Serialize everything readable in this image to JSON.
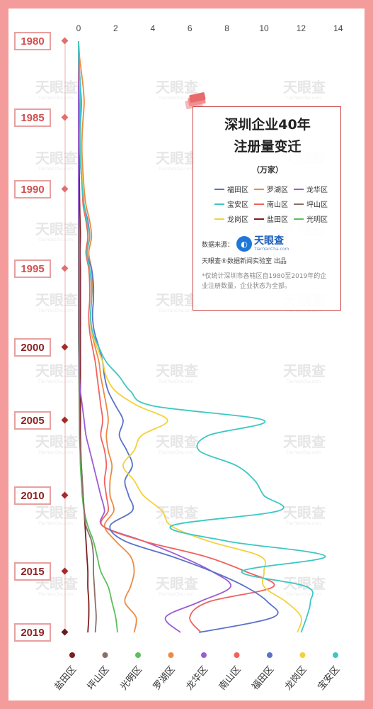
{
  "chart_data": {
    "type": "line",
    "title": "深圳企业40年注册量变迁",
    "subtitle": "（万家）",
    "orientation": "vertical-time",
    "x_axis": {
      "ticks": [
        0,
        2,
        4,
        6,
        8,
        10,
        12,
        14
      ],
      "range": [
        0,
        14.5
      ]
    },
    "year_labels": [
      "1980",
      "1985",
      "1990",
      "1995",
      "2000",
      "2005",
      "2010",
      "2015",
      "2019"
    ],
    "years": [
      1980,
      1981,
      1982,
      1983,
      1984,
      1985,
      1986,
      1987,
      1988,
      1989,
      1990,
      1991,
      1992,
      1993,
      1994,
      1995,
      1996,
      1997,
      1998,
      1999,
      2000,
      2001,
      2002,
      2003,
      2004,
      2005,
      2006,
      2007,
      2008,
      2009,
      2010,
      2011,
      2012,
      2013,
      2014,
      2015,
      2016,
      2017,
      2018,
      2019
    ],
    "series": [
      {
        "name": "福田区",
        "color": "#5b72c9",
        "values": [
          0.0,
          0.02,
          0.05,
          0.1,
          0.15,
          0.12,
          0.1,
          0.08,
          0.1,
          0.15,
          0.25,
          0.3,
          0.5,
          0.6,
          0.45,
          0.7,
          0.8,
          0.8,
          0.75,
          0.85,
          1.1,
          1.3,
          1.4,
          1.6,
          2.0,
          2.4,
          2.2,
          2.6,
          2.9,
          2.5,
          2.7,
          2.9,
          1.7,
          2.5,
          5.0,
          7.2,
          9.0,
          10.2,
          10.5,
          6.5
        ]
      },
      {
        "name": "罗湖区",
        "color": "#ed8a42",
        "values": [
          0.0,
          0.05,
          0.15,
          0.25,
          0.3,
          0.25,
          0.2,
          0.18,
          0.2,
          0.25,
          0.3,
          0.4,
          0.6,
          0.7,
          0.55,
          0.7,
          0.75,
          0.7,
          0.65,
          0.7,
          0.9,
          1.1,
          1.2,
          1.35,
          1.5,
          1.6,
          1.5,
          1.6,
          1.8,
          1.7,
          1.7,
          1.9,
          1.4,
          2.0,
          2.8,
          3.0,
          2.8,
          2.5,
          3.1,
          3.0
        ]
      },
      {
        "name": "龙华区",
        "color": "#9b5cd6",
        "values": [
          0.0,
          0.0,
          0.0,
          0.0,
          0.0,
          0.0,
          0.0,
          0.0,
          0.0,
          0.0,
          0.0,
          0.0,
          0.02,
          0.05,
          0.05,
          0.05,
          0.05,
          0.05,
          0.05,
          0.05,
          0.05,
          0.05,
          0.05,
          0.1,
          0.2,
          0.3,
          0.4,
          0.6,
          0.8,
          1.0,
          1.2,
          1.4,
          1.3,
          3.5,
          5.5,
          7.2,
          8.2,
          6.5,
          4.7,
          5.5
        ]
      },
      {
        "name": "宝安区",
        "color": "#3cc7c4",
        "values": [
          0.0,
          0.01,
          0.05,
          0.1,
          0.12,
          0.1,
          0.08,
          0.08,
          0.1,
          0.15,
          0.2,
          0.3,
          0.45,
          0.6,
          0.45,
          0.6,
          0.7,
          0.7,
          0.65,
          0.75,
          1.1,
          1.5,
          2.2,
          2.8,
          4.0,
          10.0,
          7.0,
          6.5,
          8.5,
          9.5,
          10.0,
          10.8,
          5.0,
          8.0,
          13.3,
          8.8,
          12.3,
          12.5,
          12.3,
          12.0
        ]
      },
      {
        "name": "南山区",
        "color": "#f0625e",
        "values": [
          0.0,
          0.01,
          0.03,
          0.06,
          0.08,
          0.08,
          0.08,
          0.08,
          0.1,
          0.15,
          0.2,
          0.25,
          0.4,
          0.5,
          0.4,
          0.55,
          0.6,
          0.6,
          0.55,
          0.6,
          0.75,
          0.9,
          1.0,
          1.1,
          1.2,
          1.3,
          1.2,
          1.4,
          1.5,
          1.4,
          1.5,
          1.6,
          1.3,
          3.5,
          6.8,
          9.0,
          10.5,
          7.0,
          6.0,
          6.6
        ]
      },
      {
        "name": "坪山区",
        "color": "#8c6e68",
        "values": [
          0.0,
          0.0,
          0.0,
          0.0,
          0.0,
          0.0,
          0.0,
          0.0,
          0.0,
          0.0,
          0.0,
          0.0,
          0.0,
          0.0,
          0.0,
          0.0,
          0.0,
          0.0,
          0.0,
          0.0,
          0.02,
          0.02,
          0.03,
          0.04,
          0.05,
          0.05,
          0.06,
          0.1,
          0.15,
          0.2,
          0.25,
          0.3,
          0.4,
          0.7,
          0.8,
          0.8,
          0.85,
          0.9,
          0.95,
          0.9
        ]
      },
      {
        "name": "龙岗区",
        "color": "#f2d23c",
        "values": [
          0.0,
          0.01,
          0.04,
          0.08,
          0.1,
          0.1,
          0.1,
          0.1,
          0.12,
          0.18,
          0.25,
          0.3,
          0.45,
          0.6,
          0.45,
          0.6,
          0.7,
          0.7,
          0.65,
          0.7,
          1.0,
          1.3,
          1.5,
          2.0,
          3.2,
          4.8,
          3.4,
          3.0,
          2.4,
          3.0,
          3.5,
          4.5,
          5.0,
          7.0,
          9.8,
          10.0,
          10.0,
          11.2,
          12.0,
          11.8
        ]
      },
      {
        "name": "盐田区",
        "color": "#7b1f1f",
        "values": [
          0.0,
          0.0,
          0.0,
          0.01,
          0.02,
          0.02,
          0.02,
          0.02,
          0.03,
          0.04,
          0.05,
          0.06,
          0.08,
          0.1,
          0.08,
          0.1,
          0.1,
          0.1,
          0.1,
          0.1,
          0.1,
          0.1,
          0.1,
          0.1,
          0.1,
          0.1,
          0.1,
          0.12,
          0.15,
          0.2,
          0.25,
          0.3,
          0.35,
          0.4,
          0.45,
          0.5,
          0.5,
          0.55,
          0.55,
          0.5
        ]
      },
      {
        "name": "光明区",
        "color": "#5cbf5c",
        "values": [
          0.0,
          0.0,
          0.0,
          0.0,
          0.0,
          0.0,
          0.0,
          0.0,
          0.0,
          0.0,
          0.0,
          0.0,
          0.0,
          0.0,
          0.0,
          0.0,
          0.0,
          0.0,
          0.0,
          0.0,
          0.0,
          0.02,
          0.02,
          0.03,
          0.04,
          0.05,
          0.05,
          0.08,
          0.1,
          0.15,
          0.2,
          0.3,
          0.5,
          0.8,
          1.0,
          1.2,
          1.6,
          1.8,
          2.0,
          2.1
        ]
      }
    ],
    "bottom_order": [
      "盐田区",
      "坪山区",
      "光明区",
      "罗湖区",
      "龙华区",
      "南山区",
      "福田区",
      "龙岗区",
      "宝安区"
    ],
    "legend_order": [
      "福田区",
      "罗湖区",
      "龙华区",
      "宝安区",
      "南山区",
      "坪山区",
      "龙岗区",
      "盐田区",
      "光明区"
    ],
    "legend_placement": "top-right",
    "grid": false
  },
  "info": {
    "title_line1": "深圳企业40年",
    "title_line2": "注册量变迁",
    "source_label": "数据来源：",
    "brand_name": "天眼查",
    "brand_url": "TianYanCha.com",
    "credit": "天眼查®数据新闻实验室 出品",
    "note": "*仅统计深圳市各辖区自1980至2019年的企业注册数量，企业状态为全部。"
  },
  "watermark": {
    "text": "天眼查",
    "subtext": "TianYanCha.com"
  }
}
